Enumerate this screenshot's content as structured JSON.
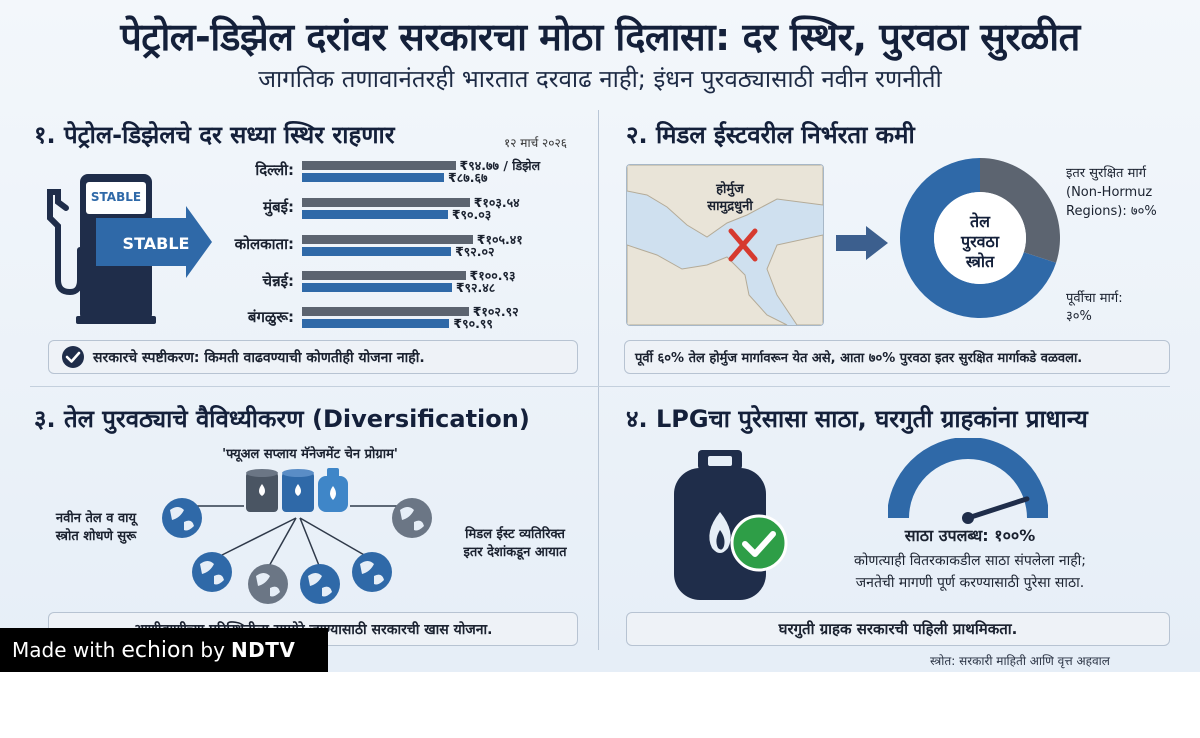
{
  "header": {
    "title": "पेट्रोल-डिझेल दरांवर सरकारचा मोठा दिलासा: दर स्थिर, पुरवठा सुरळीत",
    "subtitle": "जागतिक तणावानंतरही भारतात दरवाढ नाही; इंधन पुरवठ्यासाठी नवीन रणनीती"
  },
  "section1": {
    "title": "१. पेट्रोल-डिझेलचे दर सध्या स्थिर राहणार",
    "date": "१२ मार्च २०२६",
    "sign_label": "STABLE",
    "arrow_label": "STABLE",
    "cities": [
      {
        "name": "दिल्ली:",
        "petrol": "₹९४.७७ / डिझेल",
        "diesel": "₹८७.६७",
        "petrol_value": 94.77,
        "diesel_value": 87.67
      },
      {
        "name": "मुंबई:",
        "petrol": "₹१०३.५४",
        "diesel": "₹९०.०३",
        "petrol_value": 103.54,
        "diesel_value": 90.03
      },
      {
        "name": "कोलकाता:",
        "petrol": "₹१०५.४१",
        "diesel": "₹९२.०२",
        "petrol_value": 105.41,
        "diesel_value": 92.02
      },
      {
        "name": "चेन्नई:",
        "petrol": "₹१००.९३",
        "diesel": "₹९२.४८",
        "petrol_value": 100.93,
        "diesel_value": 92.48
      },
      {
        "name": "बंगळुरू:",
        "petrol": "₹१०२.९२",
        "diesel": "₹९०.९९",
        "petrol_value": 102.92,
        "diesel_value": 90.99
      }
    ],
    "callout": "सरकारचे स्पष्टीकरण: किमती वाढवण्याची कोणतीही योजना नाही."
  },
  "section2": {
    "title": "२. मिडल ईस्टवरील निर्भरता कमी",
    "map_label_line1": "होर्मुज",
    "map_label_line2": "सामुद्रधुनी",
    "donut_center_line1": "तेल",
    "donut_center_line2": "पुरवठा",
    "donut_center_line3": "स्त्रोत",
    "safe_route_line1": "इतर सुरक्षित मार्ग",
    "safe_route_line2": "(Non-Hormuz",
    "safe_route_line3": "Regions): ७०%",
    "old_route_line1": "पूर्वीचा मार्ग:",
    "old_route_line2": "३०%",
    "safe_route_percent": 70,
    "old_route_percent": 30,
    "callout": "पूर्वी ६०% तेल होर्मुज मार्गावरून येत असे, आता ७०% पुरवठा इतर सुरक्षित मार्गाकडे वळवला."
  },
  "section3": {
    "title": "३. तेल पुरवठ्याचे वैविध्यीकरण (Diversification)",
    "program": "'फ्यूअल सप्लाय मॅनेजमेंट चेन प्रोग्राम'",
    "left_line1": "नवीन तेल व वायू",
    "left_line2": "स्त्रोत शोधणे सुरू",
    "right_line1": "मिडल ईस्ट व्यतिरिक्त",
    "right_line2": "इतर देशांकडून आयात",
    "callout": "आणीबाणीच्या परिस्थितीला सामोरे जाण्यासाठी सरकारची खास योजना."
  },
  "section4": {
    "title": "४. LPGचा पुरेसासा साठा, घरगुती ग्राहकांना प्राधान्य",
    "stock_label": "साठा उपलब्ध: १००%",
    "stock_percent": 100,
    "line1": "कोणत्याही वितरकाकडील साठा संपलेला नाही;",
    "line2": "जनतेची मागणी पूर्ण करण्यासाठी पुरेसा साठा.",
    "callout": "घरगुती ग्राहक सरकारची पहिली प्राथमिकता."
  },
  "source": "स्त्रोत: सरकारी माहिती आणि वृत्त अहवाल",
  "watermark": {
    "made_with": "Made with",
    "brand": "echion",
    "by": "by",
    "ndtv": "NDTV"
  },
  "colors": {
    "blue": "#2f69a8",
    "grey": "#5c6470",
    "navy": "#14203a",
    "green": "#2e9e47",
    "red": "#d63a2f"
  }
}
